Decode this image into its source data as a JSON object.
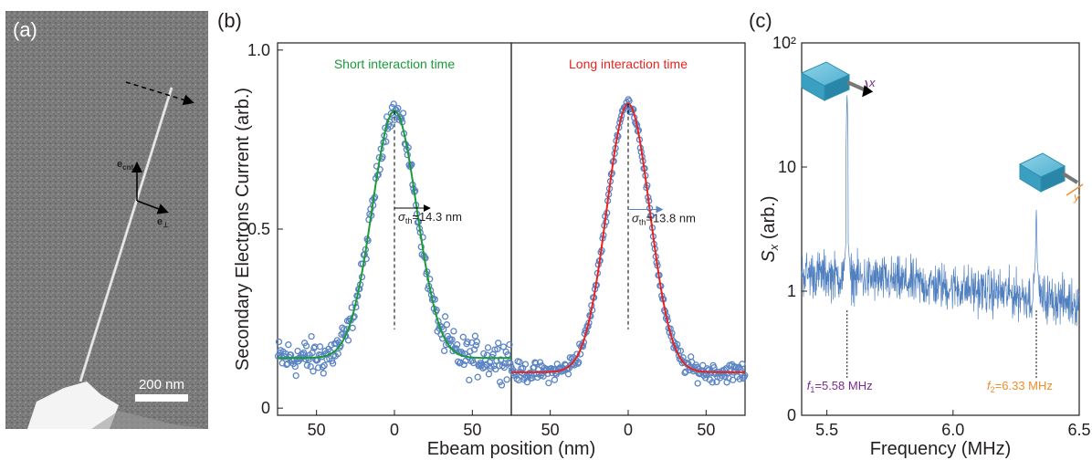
{
  "panels": {
    "a": {
      "label": "(a)",
      "scalebar_label": "200 nm",
      "vec_cnt": "e",
      "vec_cnt_sub": "cnt",
      "vec_perp": "e",
      "vec_perp_sub": "⊥"
    },
    "b": {
      "label": "(b)"
    },
    "c": {
      "label": "(c)"
    }
  },
  "colors": {
    "data_blue": "#5b84c4",
    "fit_green": "#1a9a3a",
    "fit_red": "#e8231f",
    "purple": "#7b2a90",
    "orange": "#f28c28",
    "spectrum": "#4f7fbf"
  },
  "chart_data": [
    {
      "type": "scatter",
      "panel": "b-left",
      "title": "Short interaction time",
      "xlabel": "Ebeam  position (nm)",
      "ylabel": "Secondary Electrons Current (arb.)",
      "xlim": [
        -75,
        75
      ],
      "ylim": [
        -0.02,
        1.02
      ],
      "x_ticks": [
        "50",
        "0",
        "50"
      ],
      "y_ticks": [
        "0",
        "0.5",
        "1.0"
      ],
      "fit": {
        "type": "gaussian",
        "baseline": 0.14,
        "amplitude": 0.69,
        "center": 0,
        "sigma": 14.3
      },
      "annotation": "σth=14.3 nm",
      "annotation_parts": {
        "sym": "σ",
        "sub": "th",
        "rest": "=14.3 nm"
      }
    },
    {
      "type": "scatter",
      "panel": "b-right",
      "title": "Long interaction time",
      "xlabel": "Ebeam  position (nm)",
      "xlim": [
        -75,
        75
      ],
      "ylim": [
        -0.02,
        1.02
      ],
      "x_ticks": [
        "50",
        "0",
        "50"
      ],
      "fit": {
        "type": "gaussian",
        "baseline": 0.1,
        "amplitude": 0.75,
        "center": 0,
        "sigma": 13.8
      },
      "annotation": "σth=13.8 nm",
      "annotation_parts": {
        "sym": "σ",
        "sub": "th",
        "rest": "=13.8 nm"
      }
    },
    {
      "type": "line",
      "panel": "c",
      "xlabel": "Frequency (MHz)",
      "ylabel": "Sx (arb.)",
      "ylabel_parts": {
        "sym": "S",
        "sub": "x",
        "rest": " (arb.)"
      },
      "xlim": [
        5.4,
        6.5
      ],
      "ylim": [
        0.1,
        100
      ],
      "log_y": true,
      "x_ticks": [
        "5.5",
        "6.0",
        "6.5"
      ],
      "y_ticks": [
        "0",
        "1",
        "10",
        "10²"
      ],
      "peaks": [
        {
          "freq": 5.58,
          "height": 40,
          "label": "f1=5.58 MHz",
          "parts": {
            "sym": "f",
            "sub": "1",
            "rest": "=5.58 MHz"
          },
          "axis": "x"
        },
        {
          "freq": 6.33,
          "height": 4.6,
          "label": "f2=6.33 MHz",
          "parts": {
            "sym": "f",
            "sub": "2",
            "rest": "=6.33 MHz"
          },
          "axis": "y"
        }
      ],
      "baseline_start": 1.4,
      "baseline_end": 0.8
    }
  ]
}
